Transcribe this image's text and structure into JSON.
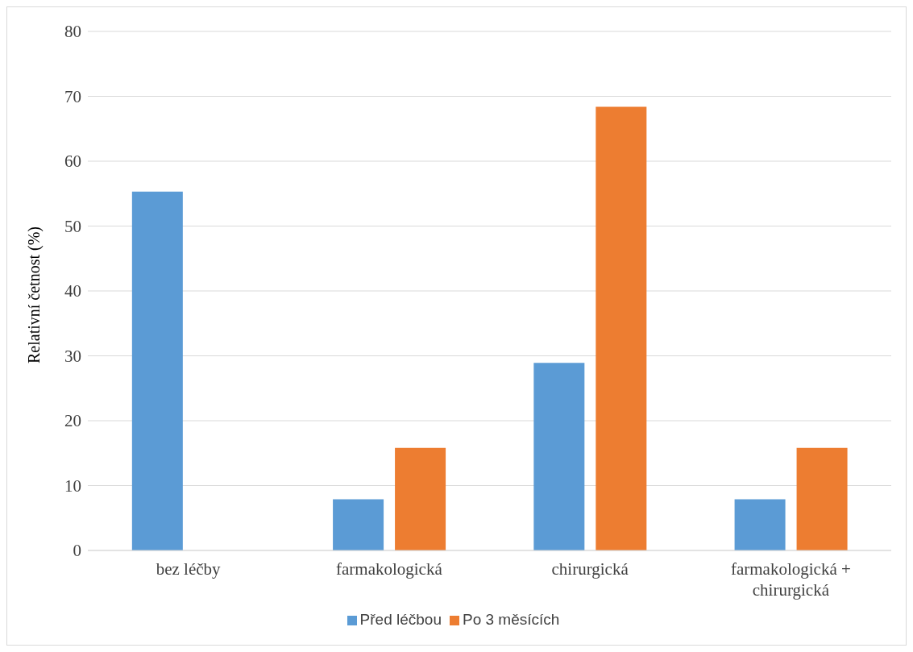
{
  "chart_data": {
    "type": "bar",
    "ylabel": "Relativní četnost (%)",
    "categories": [
      "bez léčby",
      "farmakologická",
      "chirurgická",
      "farmakologická + chirurgická"
    ],
    "series": [
      {
        "name": "Před léčbou",
        "color": "#5b9bd5",
        "values": [
          55.3,
          7.9,
          28.9,
          7.9
        ]
      },
      {
        "name": "Po 3 měsících",
        "color": "#ed7d31",
        "values": [
          0,
          15.8,
          68.4,
          15.8
        ]
      }
    ],
    "ylim": [
      0,
      80
    ],
    "yticks": [
      0,
      10,
      20,
      30,
      40,
      50,
      60,
      70,
      80
    ],
    "grid": "y",
    "legend": "bottom"
  }
}
